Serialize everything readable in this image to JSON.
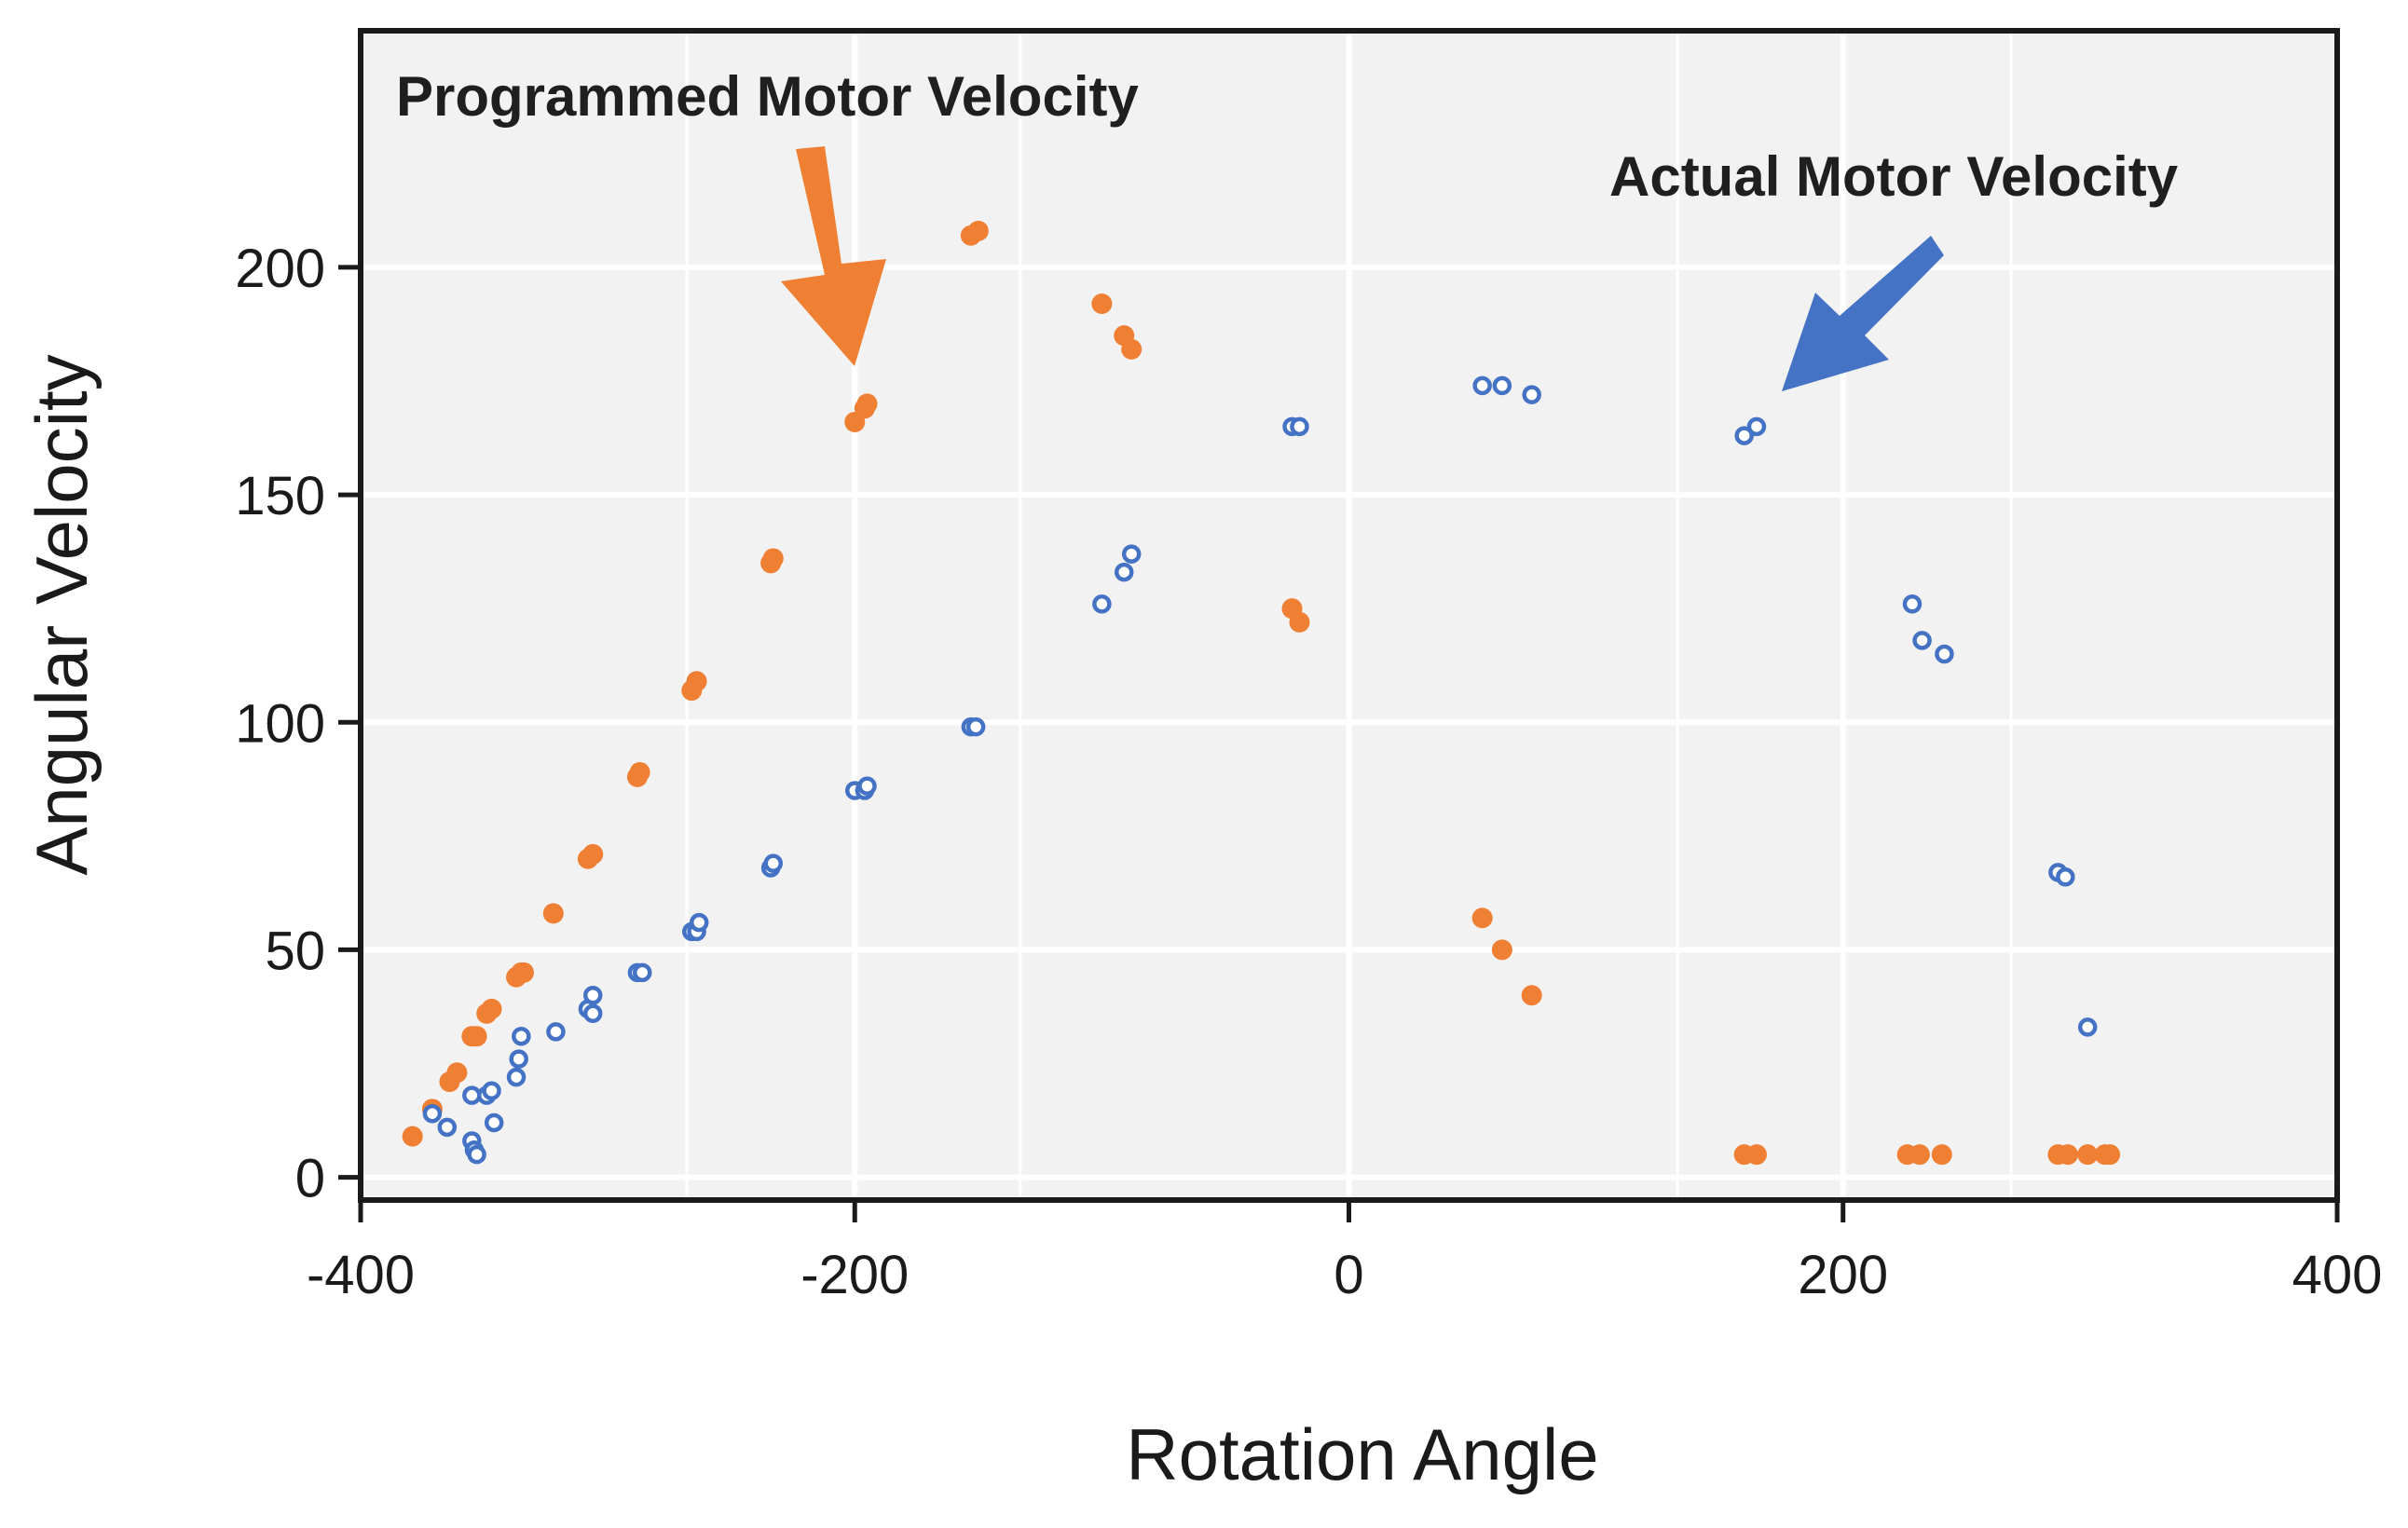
{
  "chart_data": {
    "type": "scatter",
    "title": "",
    "xlabel": "Rotation Angle",
    "ylabel": "Angular Velocity",
    "xlim": [
      -400,
      400
    ],
    "ylim": [
      -5,
      252
    ],
    "xticks": [
      -400,
      -200,
      0,
      200,
      400
    ],
    "xtick_labels": [
      "-400",
      "-200",
      "0",
      "200",
      "400"
    ],
    "yticks": [
      0,
      50,
      100,
      150,
      200
    ],
    "ytick_labels": [
      "0",
      "50",
      "100",
      "150",
      "200"
    ],
    "minor_vgrid": [
      -268,
      -133,
      133,
      268
    ],
    "grid": true,
    "legend": "none",
    "series": [
      {
        "name": "Programmed Motor Velocity",
        "color": "#EF7F33",
        "marker": "filled-circle",
        "points": [
          [
            -379,
            9
          ],
          [
            -371,
            15
          ],
          [
            -364,
            21
          ],
          [
            -361,
            23
          ],
          [
            -355,
            31
          ],
          [
            -353,
            31
          ],
          [
            -349,
            36
          ],
          [
            -347,
            37
          ],
          [
            -337,
            44
          ],
          [
            -335,
            45
          ],
          [
            -334,
            45
          ],
          [
            -322,
            58
          ],
          [
            -308,
            70
          ],
          [
            -306,
            71
          ],
          [
            -288,
            88
          ],
          [
            -287,
            89
          ],
          [
            -266,
            107
          ],
          [
            -264,
            109
          ],
          [
            -234,
            135
          ],
          [
            -233,
            136
          ],
          [
            -200,
            166
          ],
          [
            -196,
            169
          ],
          [
            -195,
            170
          ],
          [
            -153,
            207
          ],
          [
            -150,
            208
          ],
          [
            -100,
            192
          ],
          [
            -91,
            185
          ],
          [
            -88,
            182
          ],
          [
            -23,
            125
          ],
          [
            -20,
            122
          ],
          [
            54,
            57
          ],
          [
            62,
            50
          ],
          [
            74,
            40
          ],
          [
            160,
            5
          ],
          [
            165,
            5
          ],
          [
            226,
            5
          ],
          [
            231,
            5
          ],
          [
            240,
            5
          ],
          [
            287,
            5
          ],
          [
            291,
            5
          ],
          [
            299,
            5
          ],
          [
            306,
            5
          ],
          [
            308,
            5
          ]
        ]
      },
      {
        "name": "Actual Motor Velocity",
        "color": "#4472C4",
        "marker": "open-circle",
        "points": [
          [
            -371,
            14
          ],
          [
            -365,
            11
          ],
          [
            -355,
            8
          ],
          [
            -354,
            6
          ],
          [
            -353,
            5
          ],
          [
            -355,
            18
          ],
          [
            -349,
            18
          ],
          [
            -347,
            19
          ],
          [
            -346,
            12
          ],
          [
            -337,
            22
          ],
          [
            -336,
            26
          ],
          [
            -335,
            31
          ],
          [
            -321,
            32
          ],
          [
            -308,
            37
          ],
          [
            -306,
            36
          ],
          [
            -306,
            40
          ],
          [
            -288,
            45
          ],
          [
            -286,
            45
          ],
          [
            -266,
            54
          ],
          [
            -264,
            54
          ],
          [
            -263,
            56
          ],
          [
            -234,
            68
          ],
          [
            -233,
            69
          ],
          [
            -200,
            85
          ],
          [
            -196,
            85
          ],
          [
            -195,
            86
          ],
          [
            -153,
            99
          ],
          [
            -151,
            99
          ],
          [
            -100,
            126
          ],
          [
            -91,
            133
          ],
          [
            -88,
            137
          ],
          [
            -23,
            165
          ],
          [
            -20,
            165
          ],
          [
            54,
            174
          ],
          [
            62,
            174
          ],
          [
            74,
            172
          ],
          [
            160,
            163
          ],
          [
            165,
            165
          ],
          [
            228,
            126
          ],
          [
            232,
            118
          ],
          [
            241,
            115
          ],
          [
            287,
            67
          ],
          [
            290,
            66
          ],
          [
            299,
            33
          ]
        ]
      }
    ],
    "annotations": [
      {
        "text": "Programmed Motor Velocity",
        "color": "#EF7F33",
        "points_to": [
          -200,
          178
        ]
      },
      {
        "text": "Actual Motor Velocity",
        "color": "#4472C4",
        "points_to": [
          176,
          173
        ]
      }
    ]
  }
}
